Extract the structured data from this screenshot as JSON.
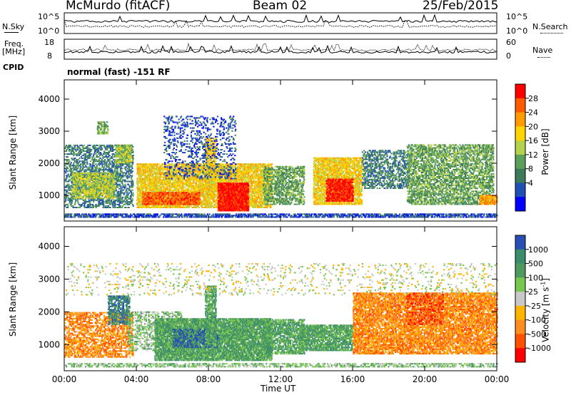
{
  "header": {
    "station": "McMurdo (fitACF)",
    "beam": "Beam 02",
    "date": "25/Feb/2015"
  },
  "top_panels": {
    "nsky_label": "N.Sky",
    "nsky_ticks": [
      "10^5",
      "10^0"
    ],
    "nsearch_label": "N.Search",
    "nsearch_ticks": [
      "10^5",
      "10^0"
    ],
    "freq_label_1": "Freq.",
    "freq_label_2": "[MHz]",
    "freq_ticks": [
      "18",
      "8"
    ],
    "nave_label": "Nave",
    "nave_ticks": [
      "60",
      "0"
    ],
    "cpid_label": "CPID",
    "cpid_value": "normal (fast) -151 RF"
  },
  "chart_data": [
    {
      "type": "heatmap",
      "panel": "power",
      "ylabel": "Slant Range [km]",
      "y_ticks": [
        1000,
        2000,
        3000,
        4000
      ],
      "ylim": [
        200,
        4600
      ],
      "x_ticks": [
        "00:00",
        "04:00",
        "08:00",
        "12:00",
        "16:00",
        "20:00",
        "00:00"
      ],
      "xlim_hours": [
        0,
        24
      ],
      "colorbar_label": "Power [dB]",
      "colorbar_ticks": [
        "28",
        "24",
        "20",
        "16",
        "12",
        "8",
        "4"
      ],
      "colorbar_colors": [
        "#ff0000",
        "#ff5a00",
        "#ff9a00",
        "#ffd400",
        "#b4d24a",
        "#5aa05a",
        "#3c7a5a",
        "#2050b4",
        "#0000ff"
      ],
      "scatter_blobs": [
        {
          "t0": 0.0,
          "t1": 3.8,
          "r0": 600,
          "r1": 2600,
          "level": 6,
          "density": 0.35
        },
        {
          "t0": 0.4,
          "t1": 2.8,
          "r0": 900,
          "r1": 1700,
          "level": 4,
          "density": 0.5
        },
        {
          "t0": 2.8,
          "t1": 3.7,
          "r0": 2000,
          "r1": 2600,
          "level": 4,
          "density": 0.5
        },
        {
          "t0": 1.8,
          "t1": 2.4,
          "r0": 2900,
          "r1": 3300,
          "level": 5,
          "density": 0.55
        },
        {
          "t0": 4.0,
          "t1": 11.5,
          "r0": 600,
          "r1": 2000,
          "level": 3,
          "density": 0.6
        },
        {
          "t0": 4.3,
          "t1": 7.5,
          "r0": 700,
          "r1": 1100,
          "level": 1,
          "density": 0.7
        },
        {
          "t0": 8.5,
          "t1": 10.2,
          "r0": 500,
          "r1": 1400,
          "level": 0,
          "density": 0.85
        },
        {
          "t0": 7.8,
          "t1": 8.4,
          "r0": 1000,
          "r1": 2800,
          "level": 3,
          "density": 0.55
        },
        {
          "t0": 5.5,
          "t1": 9.5,
          "r0": 1500,
          "r1": 3500,
          "level": 7,
          "density": 0.15
        },
        {
          "t0": 11.0,
          "t1": 13.3,
          "r0": 700,
          "r1": 1900,
          "level": 5,
          "density": 0.45
        },
        {
          "t0": 13.8,
          "t1": 16.5,
          "r0": 700,
          "r1": 2200,
          "level": 3,
          "density": 0.6
        },
        {
          "t0": 14.5,
          "t1": 16.0,
          "r0": 800,
          "r1": 1500,
          "level": 0,
          "density": 0.7
        },
        {
          "t0": 16.5,
          "t1": 19.0,
          "r0": 1200,
          "r1": 2400,
          "level": 6,
          "density": 0.35
        },
        {
          "t0": 19.0,
          "t1": 23.8,
          "r0": 700,
          "r1": 2600,
          "level": 5,
          "density": 0.45
        },
        {
          "t0": 23.0,
          "t1": 24.0,
          "r0": 700,
          "r1": 1000,
          "level": 2,
          "density": 0.6
        },
        {
          "t0": 0.0,
          "t1": 24.0,
          "r0": 300,
          "r1": 450,
          "level": 7,
          "density": 0.5
        }
      ]
    },
    {
      "type": "heatmap",
      "panel": "velocity",
      "ylabel": "Slant Range [km]",
      "y_ticks": [
        1000,
        2000,
        3000,
        4000
      ],
      "ylim": [
        200,
        4600
      ],
      "x_ticks": [
        "00:00",
        "04:00",
        "08:00",
        "12:00",
        "16:00",
        "20:00",
        "00:00"
      ],
      "xlim_hours": [
        0,
        24
      ],
      "xlabel": "Time UT",
      "colorbar_label": "Velocity [m s",
      "colorbar_label_sup": "-1",
      "colorbar_label_end": "]",
      "colorbar_ticks": [
        "1000",
        "500",
        "100",
        "25",
        "-25",
        "-100",
        "-500",
        "-1000"
      ],
      "colorbar_colors": [
        "#2a4fb4",
        "#3a8c6c",
        "#4f9a60",
        "#78c850",
        "#c8c8c8",
        "#ffb400",
        "#ff8c1e",
        "#ff5000",
        "#ff0000"
      ],
      "scatter_blobs": [
        {
          "t0": 0.0,
          "t1": 3.8,
          "r0": 600,
          "r1": 2000,
          "level": 6,
          "density": 0.4
        },
        {
          "t0": 2.4,
          "t1": 3.6,
          "r0": 1600,
          "r1": 2500,
          "level": 1,
          "density": 0.45
        },
        {
          "t0": 3.5,
          "t1": 6.5,
          "r0": 800,
          "r1": 2000,
          "level": 3,
          "density": 0.3
        },
        {
          "t0": 5.0,
          "t1": 11.5,
          "r0": 500,
          "r1": 1800,
          "level": 2,
          "density": 0.7
        },
        {
          "t0": 6.0,
          "t1": 8.5,
          "r0": 900,
          "r1": 1500,
          "level": 0,
          "density": 0.3
        },
        {
          "t0": 7.8,
          "t1": 8.4,
          "r0": 1000,
          "r1": 2800,
          "level": 2,
          "density": 0.5
        },
        {
          "t0": 11.0,
          "t1": 13.3,
          "r0": 700,
          "r1": 1800,
          "level": 2,
          "density": 0.5
        },
        {
          "t0": 13.0,
          "t1": 16.0,
          "r0": 800,
          "r1": 1600,
          "level": 2,
          "density": 0.6
        },
        {
          "t0": 16.0,
          "t1": 24.0,
          "r0": 700,
          "r1": 2600,
          "level": 6,
          "density": 0.55
        },
        {
          "t0": 19.0,
          "t1": 21.0,
          "r0": 1600,
          "r1": 2600,
          "level": 7,
          "density": 0.3
        },
        {
          "t0": 0.0,
          "t1": 24.0,
          "r0": 2500,
          "r1": 3500,
          "level": 4,
          "density": 0.06
        },
        {
          "t0": 0.0,
          "t1": 24.0,
          "r0": 300,
          "r1": 450,
          "level": 3,
          "density": 0.35
        }
      ]
    }
  ]
}
